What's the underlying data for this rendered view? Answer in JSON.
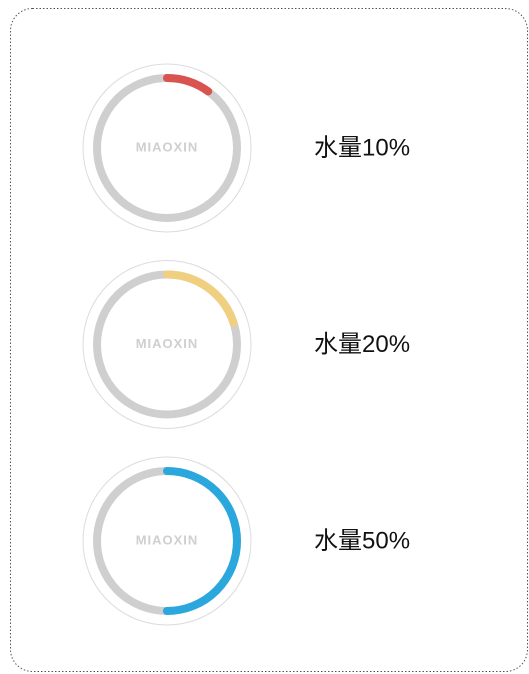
{
  "gauges": [
    {
      "logo": "MIAOXIN",
      "label": "水量10%",
      "value": 10,
      "color": "#d9534f"
    },
    {
      "logo": "MIAOXIN",
      "label": "水量20%",
      "value": 20,
      "color": "#f0d080"
    },
    {
      "logo": "MIAOXIN",
      "label": "水量50%",
      "value": 50,
      "color": "#2aa8de"
    }
  ]
}
